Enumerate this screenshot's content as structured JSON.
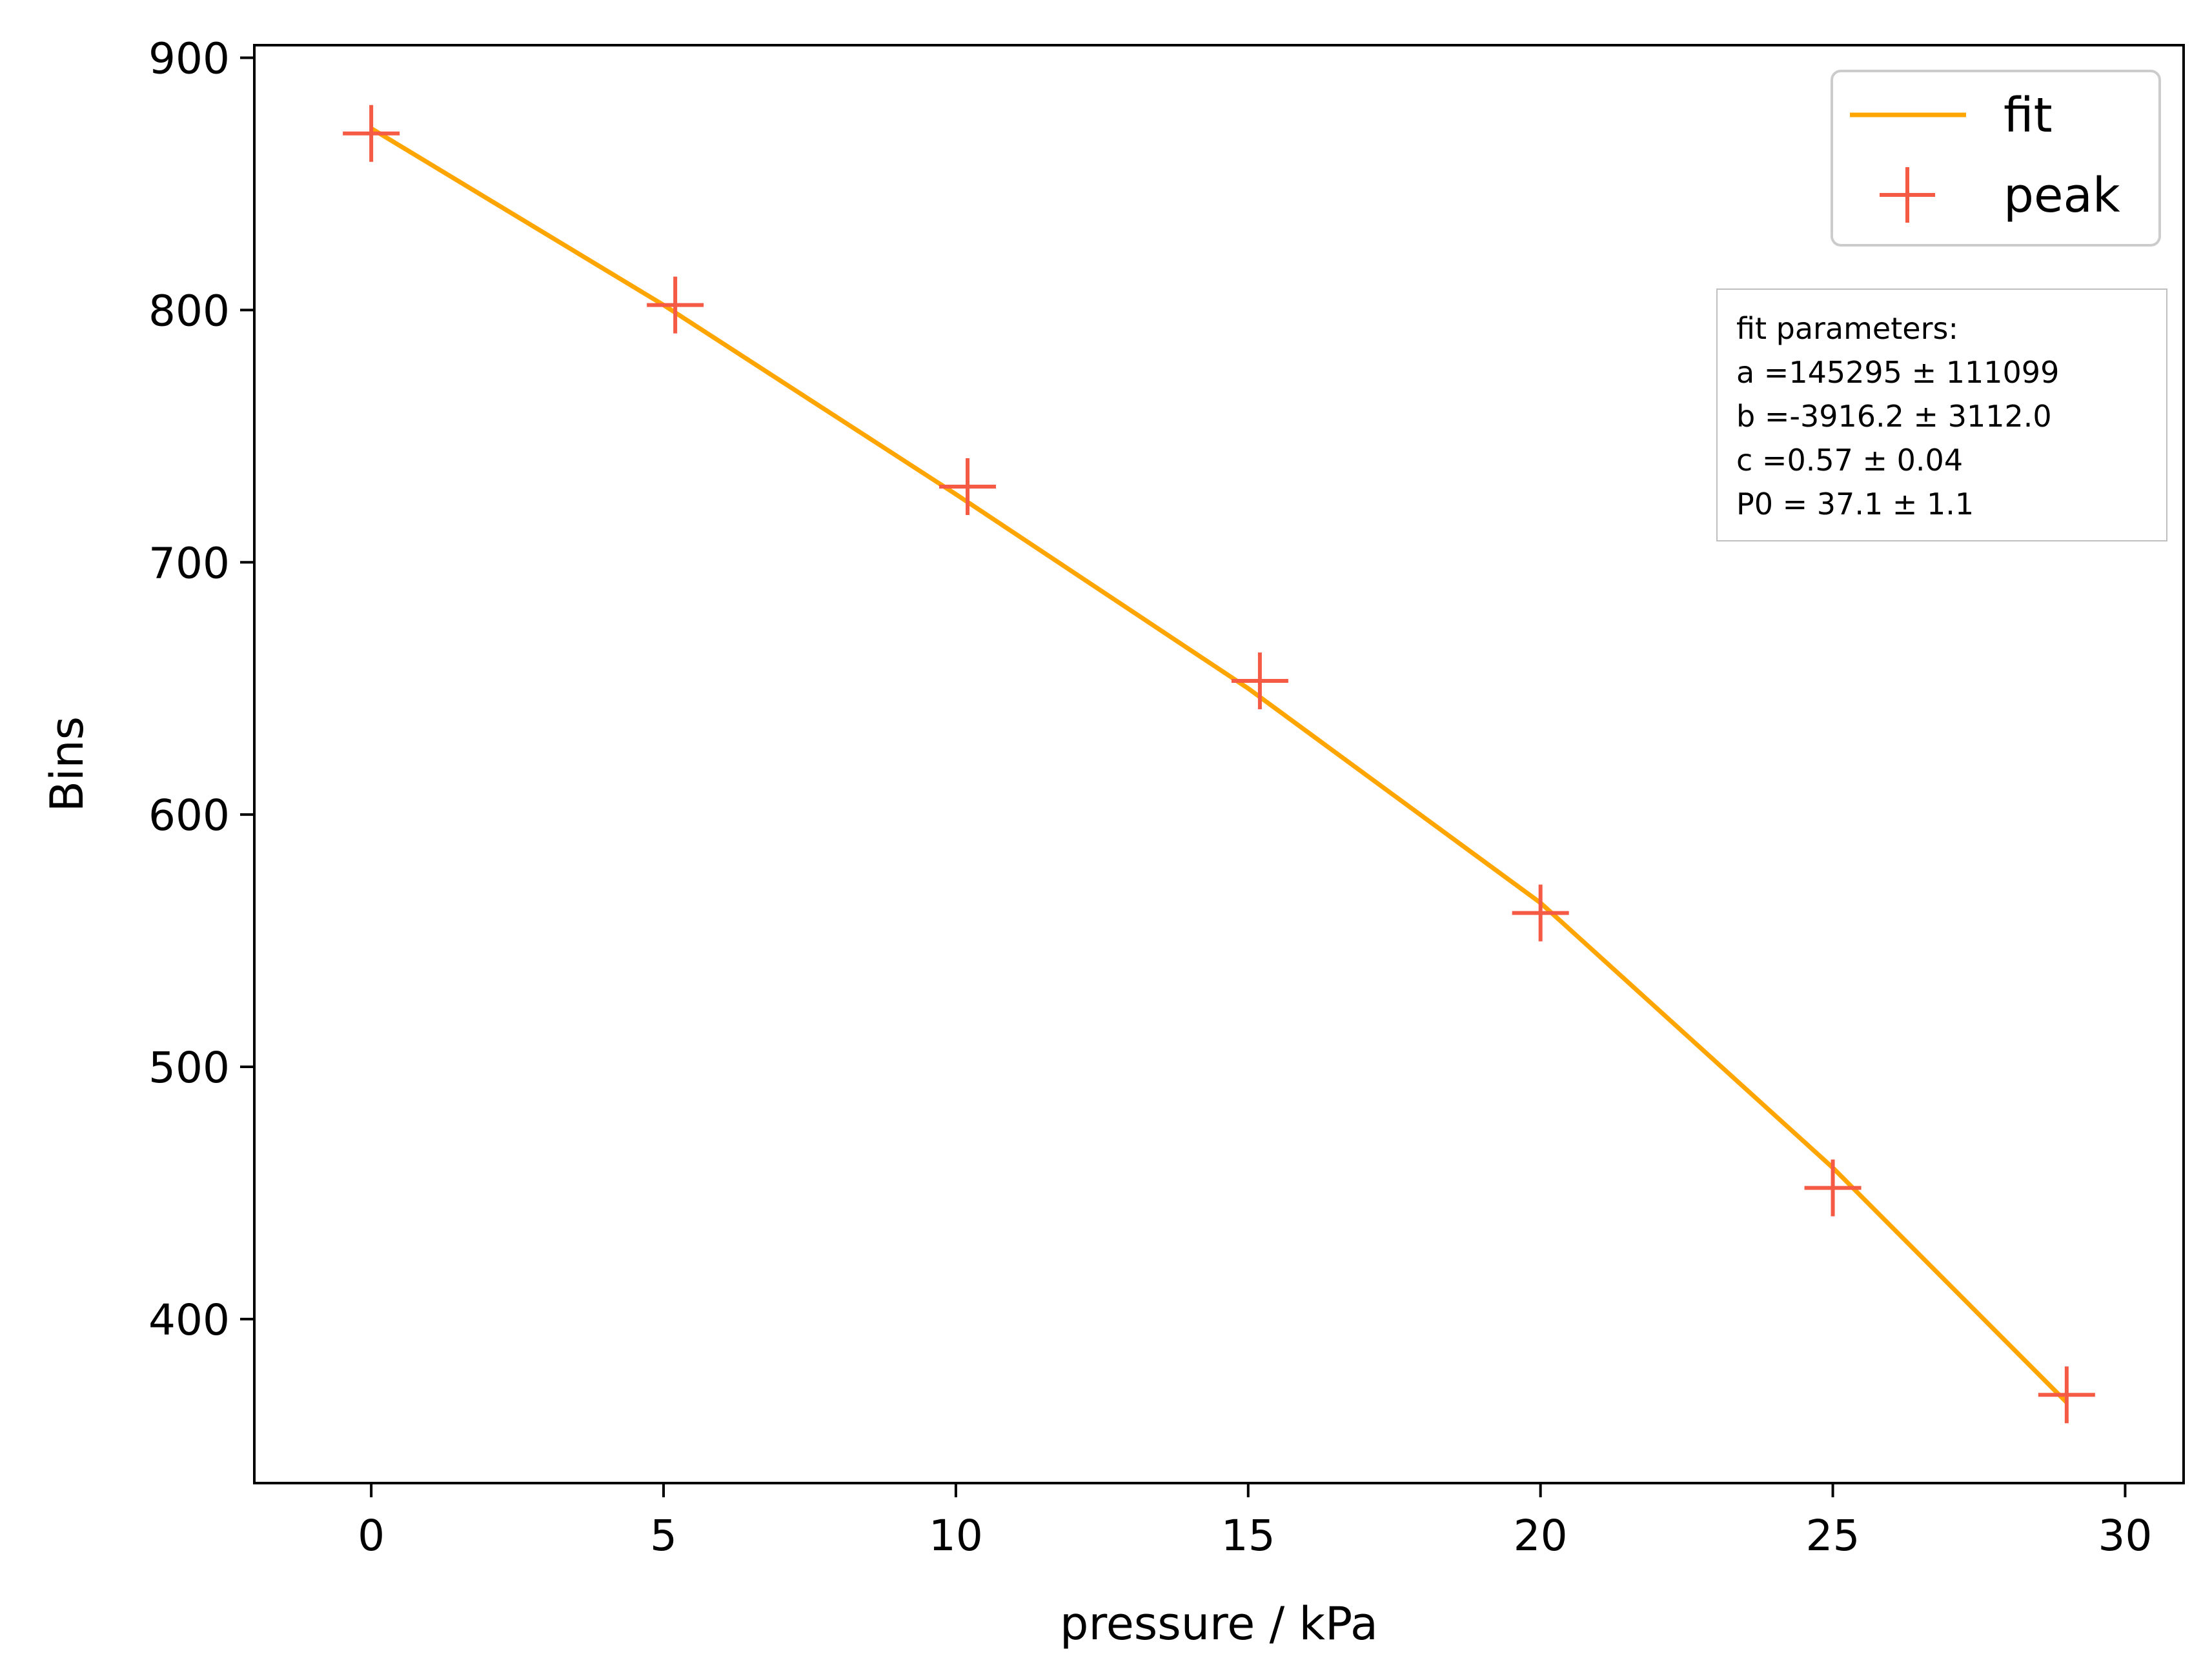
{
  "chart_data": {
    "type": "scatter",
    "title": "",
    "xlabel": "pressure / kPa",
    "ylabel": "Bins",
    "xlim": [
      -2,
      31
    ],
    "ylim": [
      335,
      905
    ],
    "xticks": [
      0,
      5,
      10,
      15,
      20,
      25,
      30
    ],
    "yticks": [
      400,
      500,
      600,
      700,
      800,
      900
    ],
    "xtick_labels": [
      "0",
      "5",
      "10",
      "15",
      "20",
      "25",
      "30"
    ],
    "ytick_labels": [
      "400",
      "500",
      "600",
      "700",
      "800",
      "900"
    ],
    "grid": false,
    "legend_position": "top-right",
    "series": [
      {
        "name": "fit",
        "kind": "line",
        "color": "#ffa500",
        "x": [
          0,
          5,
          10,
          15,
          20,
          25,
          29
        ],
        "y": [
          872,
          802,
          727,
          650,
          565,
          460,
          367
        ]
      },
      {
        "name": "peak",
        "kind": "marker",
        "marker": "plus",
        "color": "#f55a45",
        "x": [
          0,
          5.2,
          10.2,
          15.2,
          20,
          25,
          29
        ],
        "y": [
          870,
          802,
          730,
          653,
          561,
          452,
          370
        ]
      }
    ],
    "annotations": [
      {
        "name": "fit-parameters-box",
        "lines": [
          "fit parameters:",
          "a =145295 ± 111099",
          "b =-3916.2 ± 3112.0",
          "c =0.57 ± 0.04",
          "P0 = 37.1 ± 1.1"
        ]
      }
    ]
  }
}
